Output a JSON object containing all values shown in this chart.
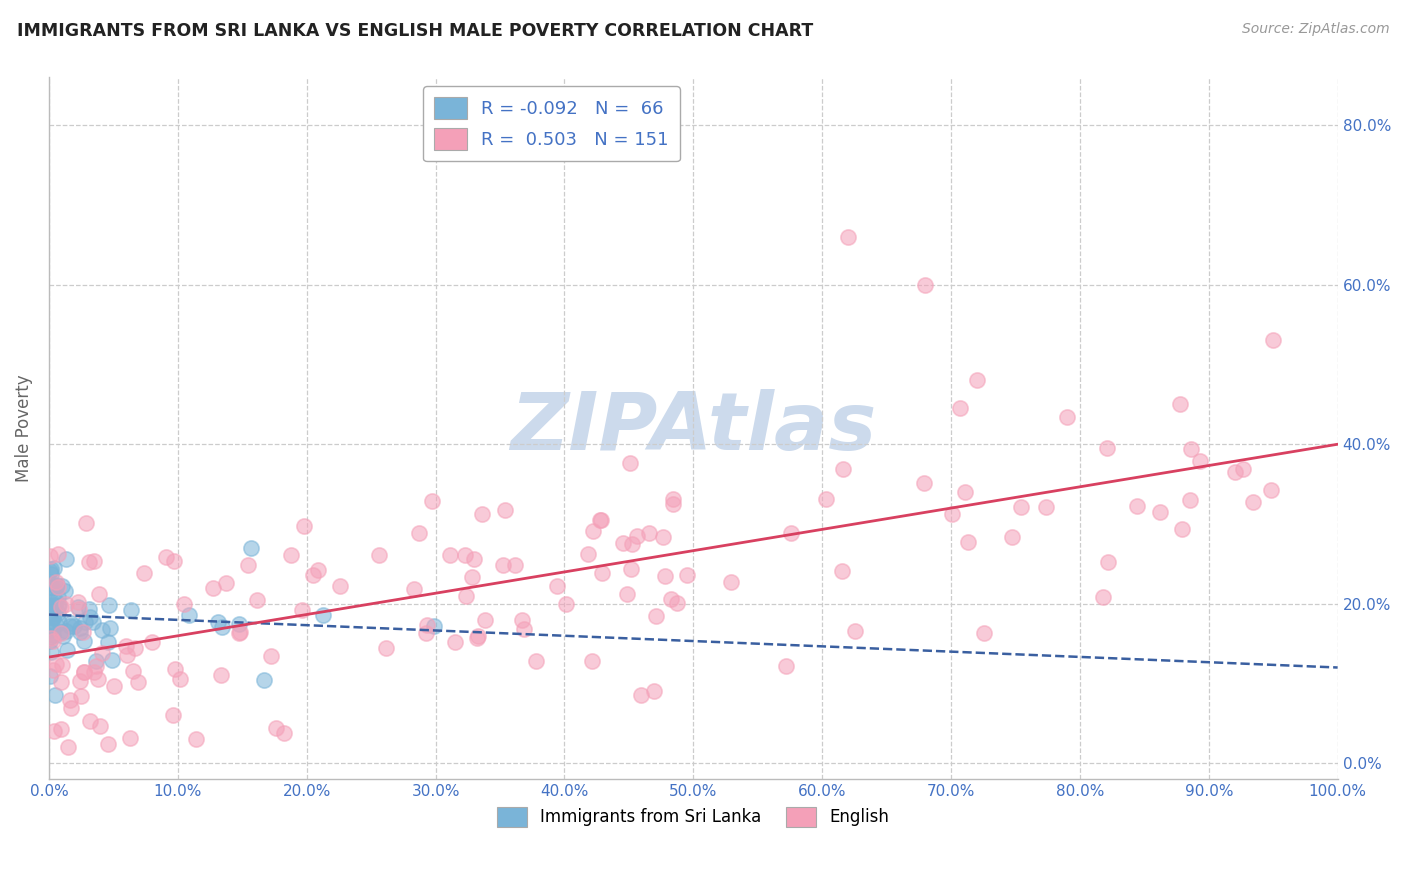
{
  "title": "IMMIGRANTS FROM SRI LANKA VS ENGLISH MALE POVERTY CORRELATION CHART",
  "source": "Source: ZipAtlas.com",
  "ylabel": "Male Poverty",
  "xlim": [
    0.0,
    1.0
  ],
  "ylim": [
    -0.02,
    0.86
  ],
  "x_ticks": [
    0.0,
    0.1,
    0.2,
    0.3,
    0.4,
    0.5,
    0.6,
    0.7,
    0.8,
    0.9,
    1.0
  ],
  "x_tick_labels": [
    "0.0%",
    "10.0%",
    "20.0%",
    "30.0%",
    "40.0%",
    "50.0%",
    "60.0%",
    "70.0%",
    "80.0%",
    "90.0%",
    "100.0%"
  ],
  "y_ticks": [
    0.0,
    0.2,
    0.4,
    0.6,
    0.8
  ],
  "y_tick_labels": [
    "0.0%",
    "20.0%",
    "40.0%",
    "60.0%",
    "80.0%"
  ],
  "blue_scatter_color": "#7ab4d8",
  "blue_trend_color": "#3a5fa0",
  "pink_scatter_color": "#f4a0b8",
  "pink_trend_color": "#d84060",
  "R_blue": -0.092,
  "N_blue": 66,
  "R_pink": 0.503,
  "N_pink": 151,
  "label_blue": "Immigrants from Sri Lanka",
  "label_pink": "English",
  "watermark": "ZIPAtlas",
  "watermark_color": "#ccdaec",
  "background_color": "#ffffff",
  "grid_color": "#cccccc",
  "title_color": "#222222",
  "ylabel_color": "#666666",
  "tick_color": "#4472c4",
  "source_color": "#999999",
  "seed": 42
}
